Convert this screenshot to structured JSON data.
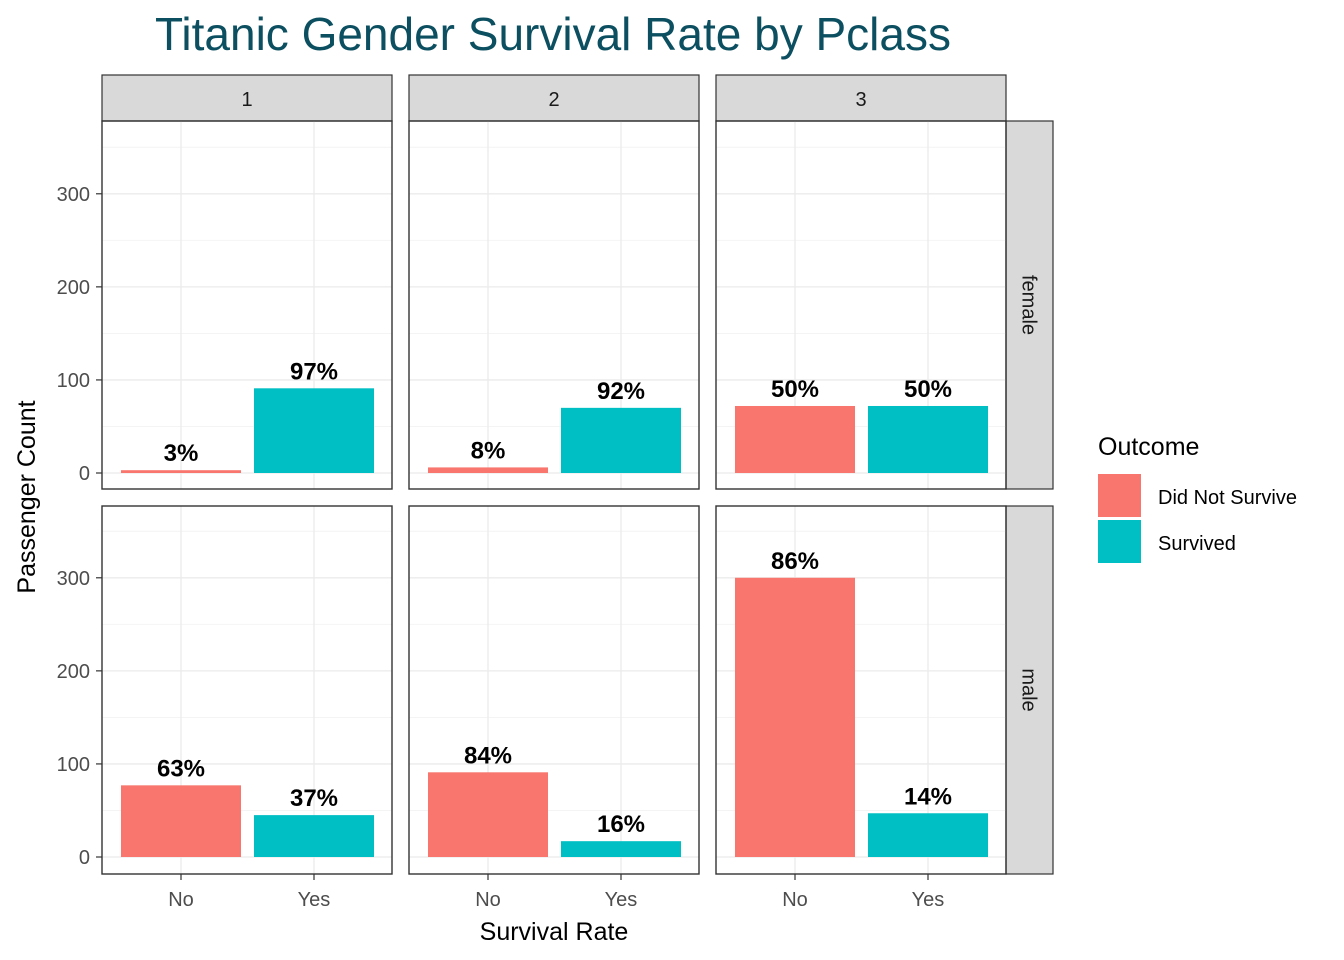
{
  "chart_data": {
    "type": "bar",
    "title": "Titanic Gender Survival Rate by Pclass",
    "xlabel": "Survival Rate",
    "ylabel": "Passenger Count",
    "categories": [
      "No",
      "Yes"
    ],
    "ylim": [
      0,
      370
    ],
    "yticks": [
      0,
      100,
      200,
      300
    ],
    "grid": true,
    "column_facets": [
      "1",
      "2",
      "3"
    ],
    "row_facets": [
      "female",
      "male"
    ],
    "legend": {
      "title": "Outcome",
      "position": "right",
      "entries": [
        {
          "label": "Did Not Survive",
          "color": "#f8766d"
        },
        {
          "label": "Survived",
          "color": "#00bfc4"
        }
      ]
    },
    "panels": [
      {
        "pclass": "1",
        "sex": "female",
        "values": [
          3,
          91
        ],
        "labels": [
          "3%",
          "97%"
        ]
      },
      {
        "pclass": "2",
        "sex": "female",
        "values": [
          6,
          70
        ],
        "labels": [
          "8%",
          "92%"
        ]
      },
      {
        "pclass": "3",
        "sex": "female",
        "values": [
          72,
          72
        ],
        "labels": [
          "50%",
          "50%"
        ]
      },
      {
        "pclass": "1",
        "sex": "male",
        "values": [
          77,
          45
        ],
        "labels": [
          "63%",
          "37%"
        ]
      },
      {
        "pclass": "2",
        "sex": "male",
        "values": [
          91,
          17
        ],
        "labels": [
          "84%",
          "16%"
        ]
      },
      {
        "pclass": "3",
        "sex": "male",
        "values": [
          300,
          47
        ],
        "labels": [
          "86%",
          "14%"
        ]
      }
    ]
  }
}
